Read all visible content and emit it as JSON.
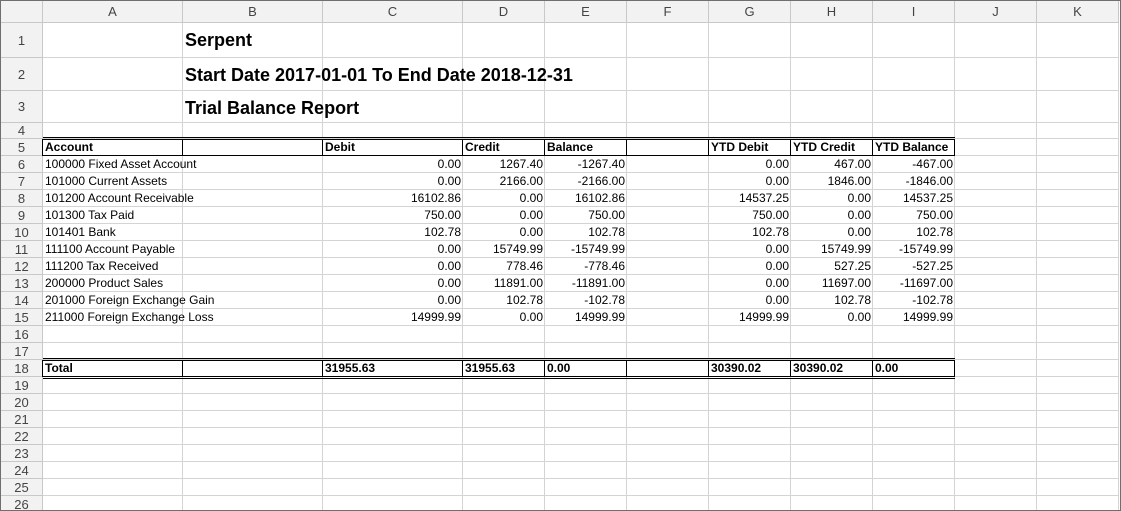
{
  "columns": [
    "A",
    "B",
    "C",
    "D",
    "E",
    "F",
    "G",
    "H",
    "I",
    "J",
    "K"
  ],
  "rows": [
    "1",
    "2",
    "3",
    "4",
    "5",
    "6",
    "7",
    "8",
    "9",
    "10",
    "11",
    "12",
    "13",
    "14",
    "15",
    "16",
    "17",
    "18",
    "19",
    "20",
    "21",
    "22",
    "23",
    "24",
    "25",
    "26"
  ],
  "report": {
    "company": "Serpent",
    "period": "Start Date 2017-01-01 To End Date 2018-12-31",
    "title": "Trial Balance Report"
  },
  "table": {
    "headers": {
      "account": "Account",
      "debit": "Debit",
      "credit": "Credit",
      "balance": "Balance",
      "ytd_debit": "YTD Debit",
      "ytd_credit": "YTD Credit",
      "ytd_balance": "YTD Balance"
    },
    "rows": [
      {
        "account": "100000  Fixed Asset Account",
        "debit": "0.00",
        "credit": "1267.40",
        "balance": "-1267.40",
        "ytd_debit": "0.00",
        "ytd_credit": "467.00",
        "ytd_balance": "-467.00"
      },
      {
        "account": "101000  Current Assets",
        "debit": "0.00",
        "credit": "2166.00",
        "balance": "-2166.00",
        "ytd_debit": "0.00",
        "ytd_credit": "1846.00",
        "ytd_balance": "-1846.00"
      },
      {
        "account": "101200  Account Receivable",
        "debit": "16102.86",
        "credit": "0.00",
        "balance": "16102.86",
        "ytd_debit": "14537.25",
        "ytd_credit": "0.00",
        "ytd_balance": "14537.25"
      },
      {
        "account": "101300  Tax Paid",
        "debit": "750.00",
        "credit": "0.00",
        "balance": "750.00",
        "ytd_debit": "750.00",
        "ytd_credit": "0.00",
        "ytd_balance": "750.00"
      },
      {
        "account": "101401  Bank",
        "debit": "102.78",
        "credit": "0.00",
        "balance": "102.78",
        "ytd_debit": "102.78",
        "ytd_credit": "0.00",
        "ytd_balance": "102.78"
      },
      {
        "account": "111100  Account Payable",
        "debit": "0.00",
        "credit": "15749.99",
        "balance": "-15749.99",
        "ytd_debit": "0.00",
        "ytd_credit": "15749.99",
        "ytd_balance": "-15749.99"
      },
      {
        "account": "111200  Tax Received",
        "debit": "0.00",
        "credit": "778.46",
        "balance": "-778.46",
        "ytd_debit": "0.00",
        "ytd_credit": "527.25",
        "ytd_balance": "-527.25"
      },
      {
        "account": "200000  Product Sales",
        "debit": "0.00",
        "credit": "11891.00",
        "balance": "-11891.00",
        "ytd_debit": "0.00",
        "ytd_credit": "11697.00",
        "ytd_balance": "-11697.00"
      },
      {
        "account": "201000  Foreign Exchange Gain",
        "debit": "0.00",
        "credit": "102.78",
        "balance": "-102.78",
        "ytd_debit": "0.00",
        "ytd_credit": "102.78",
        "ytd_balance": "-102.78"
      },
      {
        "account": "211000  Foreign Exchange Loss",
        "debit": "14999.99",
        "credit": "0.00",
        "balance": "14999.99",
        "ytd_debit": "14999.99",
        "ytd_credit": "0.00",
        "ytd_balance": "14999.99"
      }
    ],
    "total": {
      "label": "Total",
      "debit": "31955.63",
      "credit": "31955.63",
      "balance": "0.00",
      "ytd_debit": "30390.02",
      "ytd_credit": "30390.02",
      "ytd_balance": "0.00"
    }
  }
}
